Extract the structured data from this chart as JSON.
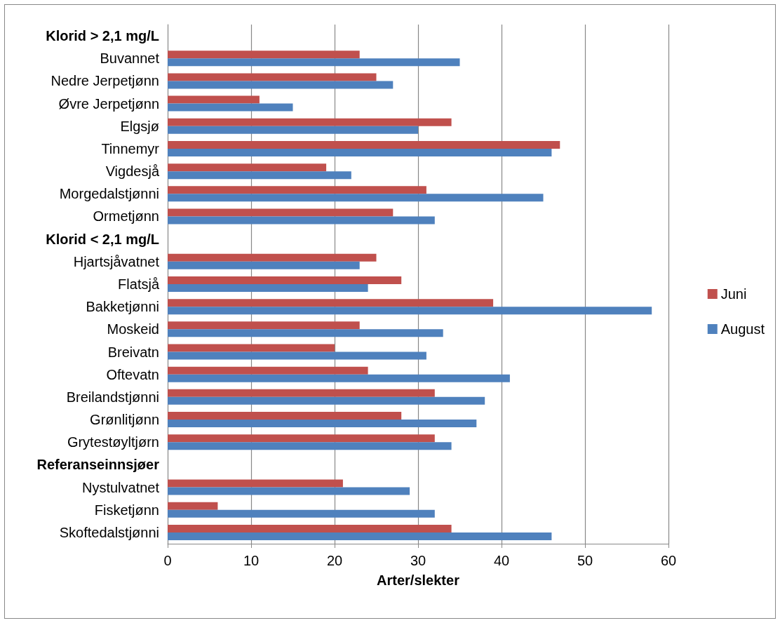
{
  "chart_data": {
    "type": "bar",
    "orientation": "horizontal",
    "xlabel": "Arter/slekter",
    "categories": [
      "Klorid > 2,1 mg/L",
      "Buvannet",
      "Nedre Jerpetjønn",
      "Øvre Jerpetjønn",
      "Elgsjø",
      "Tinnemyr",
      "Vigdesjå",
      "Morgedalstjønni",
      "Ormetjønn",
      "Klorid < 2,1 mg/L",
      "Hjartsjåvatnet",
      "Flatsjå",
      "Bakketjønni",
      "Moskeid",
      "Breivatn",
      "Oftevatn",
      "Breilandstjønni",
      "Grønlitjønn",
      "Grytestøyltjørn",
      "Referanseinnsjøer",
      "Nystulvatnet",
      "Fisketjønn",
      "Skoftedalstjønni"
    ],
    "series": [
      {
        "name": "Juni",
        "color": "#c0504d",
        "values": [
          null,
          23,
          25,
          11,
          34,
          47,
          19,
          31,
          27,
          null,
          25,
          28,
          39,
          23,
          20,
          24,
          32,
          28,
          32,
          null,
          21,
          6,
          34
        ]
      },
      {
        "name": "August",
        "color": "#4f81bd",
        "values": [
          null,
          35,
          27,
          15,
          30,
          46,
          22,
          45,
          32,
          null,
          23,
          24,
          58,
          33,
          31,
          41,
          38,
          37,
          34,
          null,
          29,
          32,
          46
        ]
      }
    ],
    "xlim": [
      0,
      60
    ],
    "xticks": [
      0,
      10,
      20,
      30,
      40,
      50,
      60
    ],
    "grid": "x",
    "legend": "right"
  }
}
